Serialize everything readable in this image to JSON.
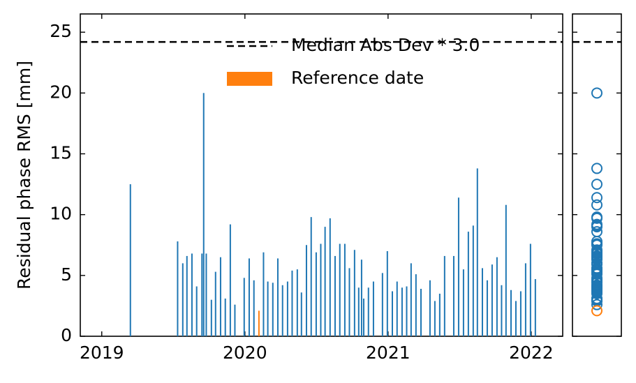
{
  "chart_data": {
    "type": "bar",
    "y_label": "Residual phase RMS [mm]",
    "xlim": [
      2018.85,
      2022.22
    ],
    "xticks": [
      2019,
      2020,
      2021,
      2022
    ],
    "ylim": [
      0,
      26.5
    ],
    "yticks": [
      0,
      5,
      10,
      15,
      20,
      25
    ],
    "grid": false,
    "legend": "upper right",
    "threshold": {
      "name": "Median Abs Dev * 3.0",
      "value": 24.2,
      "color": "#000000"
    },
    "series": [
      {
        "color": "#1f77b4",
        "x": [
          2019.2,
          2019.53,
          2019.566,
          2019.595,
          2019.63,
          2019.663,
          2019.7,
          2019.712,
          2019.73,
          2019.766,
          2019.795,
          2019.83,
          2019.863,
          2019.898,
          2019.93,
          2019.995,
          2020.03,
          2020.063,
          2020.13,
          2020.16,
          2020.195,
          2020.23,
          2020.263,
          2020.298,
          2020.33,
          2020.366,
          2020.395,
          2020.43,
          2020.463,
          2020.498,
          2020.53,
          2020.56,
          2020.595,
          2020.63,
          2020.663,
          2020.698,
          2020.73,
          2020.766,
          2020.795,
          2020.815,
          2020.83,
          2020.863,
          2020.898,
          2020.961,
          2020.995,
          2021.03,
          2021.063,
          2021.098,
          2021.13,
          2021.161,
          2021.195,
          2021.23,
          2021.293,
          2021.327,
          2021.361,
          2021.395,
          2021.459,
          2021.493,
          2021.527,
          2021.561,
          2021.595,
          2021.624,
          2021.659,
          2021.693,
          2021.727,
          2021.761,
          2021.793,
          2021.824,
          2021.859,
          2021.893,
          2021.927,
          2021.961,
          2021.995,
          2022.029
        ],
        "values": [
          12.5,
          7.8,
          6.0,
          6.6,
          6.8,
          4.1,
          6.8,
          20.0,
          6.8,
          3.0,
          5.3,
          6.5,
          3.1,
          9.2,
          2.6,
          4.8,
          6.4,
          4.6,
          6.9,
          4.5,
          4.4,
          6.4,
          4.2,
          4.5,
          5.4,
          5.5,
          3.6,
          7.5,
          9.8,
          6.9,
          7.6,
          9.0,
          9.7,
          6.6,
          7.6,
          7.6,
          5.6,
          7.1,
          4.0,
          6.3,
          3.1,
          4.0,
          4.5,
          5.2,
          7.0,
          3.7,
          4.5,
          4.0,
          4.1,
          6.0,
          5.1,
          3.9,
          4.6,
          2.9,
          3.5,
          6.6,
          6.6,
          11.4,
          5.5,
          8.6,
          9.1,
          13.8,
          5.6,
          4.6,
          5.9,
          6.5,
          4.2,
          10.8,
          3.8,
          2.9,
          3.7,
          6.0,
          7.6,
          4.7
        ]
      },
      {
        "name": "Reference date",
        "color": "#ff7f0e",
        "x": [
          2020.098
        ],
        "values": [
          2.1
        ]
      }
    ]
  }
}
